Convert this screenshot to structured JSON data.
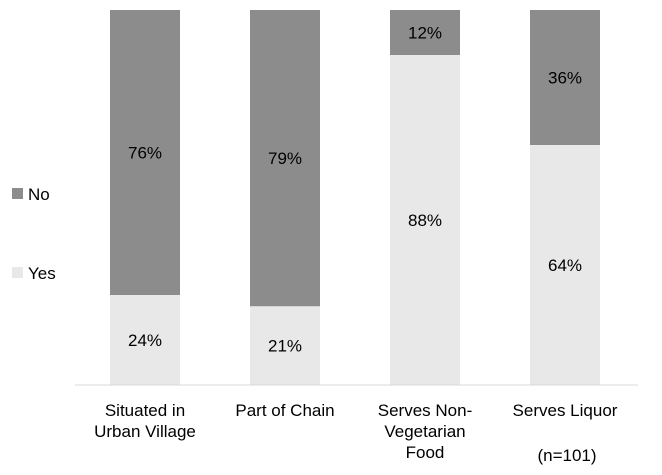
{
  "chart_data": {
    "type": "bar",
    "stacked": true,
    "percent_stacked": true,
    "categories": [
      [
        "Situated in",
        "Urban Village"
      ],
      [
        "Part of Chain"
      ],
      [
        "Serves Non-",
        "Vegetarian",
        "Food"
      ],
      [
        "Serves Liquor"
      ]
    ],
    "series": [
      {
        "name": "Yes",
        "values": [
          24,
          21,
          88,
          64
        ],
        "color": "#e8e8e8"
      },
      {
        "name": "No",
        "values": [
          76,
          79,
          12,
          36
        ],
        "color": "#8c8c8c"
      }
    ],
    "data_label_suffix": "%",
    "ylim": [
      0,
      100
    ],
    "grid": false,
    "legend_position": "left",
    "legend": [
      {
        "name": "No",
        "color": "#8c8c8c"
      },
      {
        "name": "Yes",
        "color": "#e8e8e8"
      }
    ],
    "annotation": "(n=101)"
  }
}
